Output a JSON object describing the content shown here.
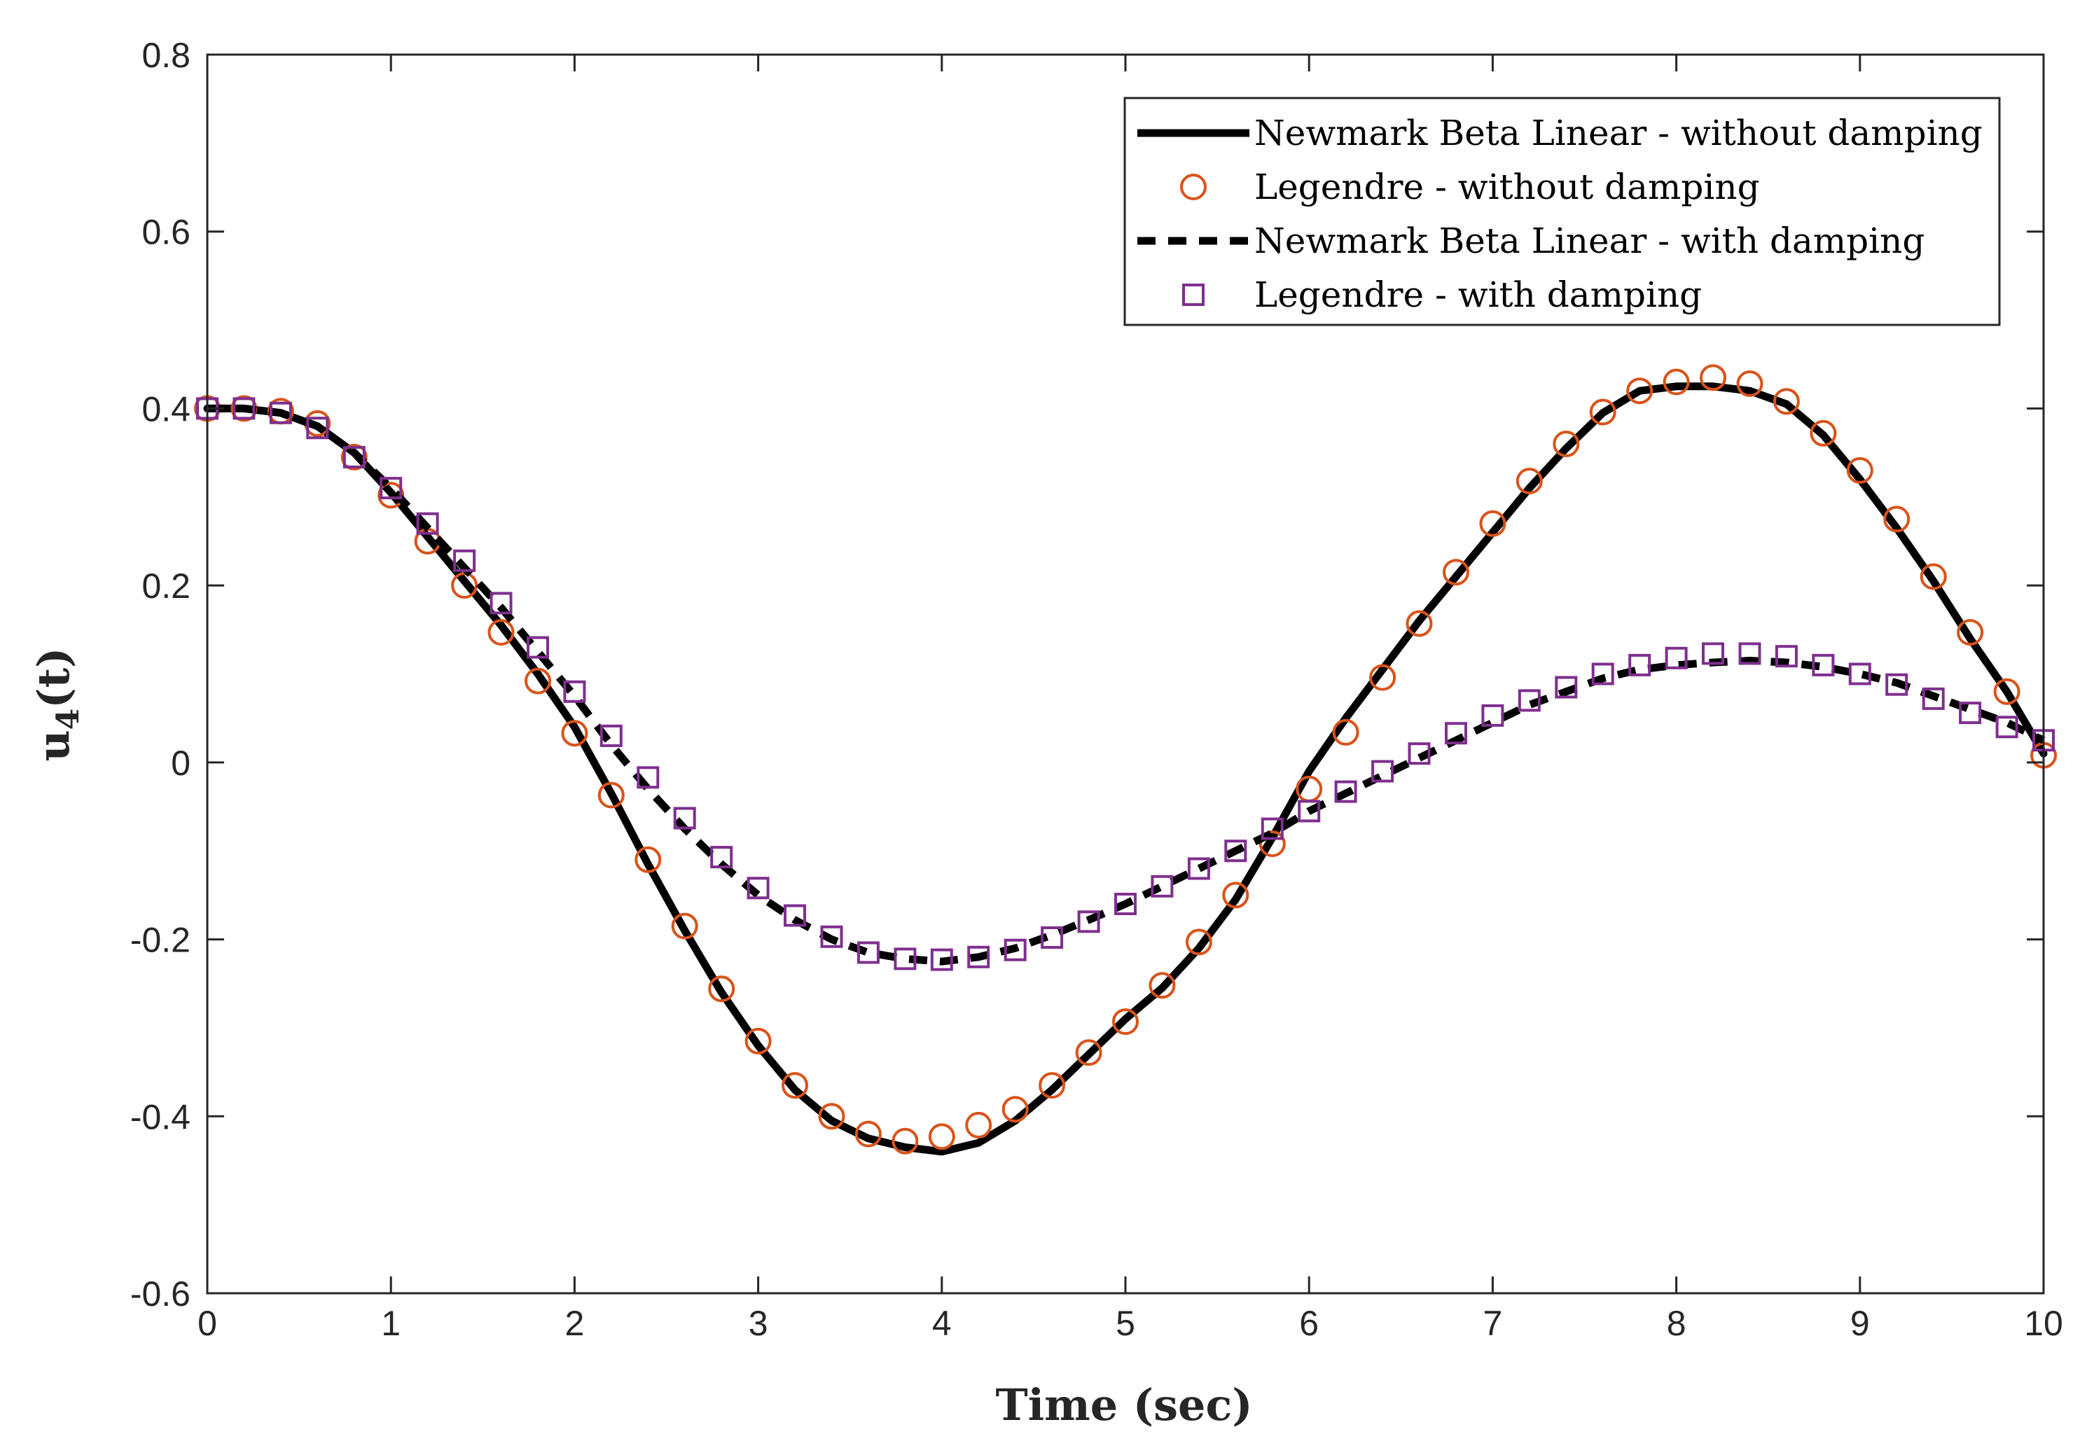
{
  "chart_data": {
    "type": "line",
    "title": "",
    "xlabel": "Time (sec)",
    "ylabel_main": "u",
    "ylabel_sub": "4",
    "ylabel_suffix": "(t)",
    "xlim": [
      0,
      10
    ],
    "ylim": [
      -0.6,
      0.8
    ],
    "xticks": [
      0,
      1,
      2,
      3,
      4,
      5,
      6,
      7,
      8,
      9,
      10
    ],
    "yticks": [
      -0.6,
      -0.4,
      -0.2,
      0,
      0.2,
      0.4,
      0.6,
      0.8
    ],
    "xtick_labels": [
      "0",
      "1",
      "2",
      "3",
      "4",
      "5",
      "6",
      "7",
      "8",
      "9",
      "10"
    ],
    "ytick_labels": [
      "-0.6",
      "-0.4",
      "-0.2",
      "0",
      "0.2",
      "0.4",
      "0.6",
      "0.8"
    ],
    "grid": false,
    "legend_position": "top-right",
    "series": [
      {
        "name": "Newmark Beta Linear - without damping",
        "style": "solid-line",
        "color": "#000000",
        "x": [
          0,
          0.2,
          0.4,
          0.6,
          0.8,
          1.0,
          1.2,
          1.4,
          1.6,
          1.8,
          2.0,
          2.2,
          2.4,
          2.6,
          2.8,
          3.0,
          3.2,
          3.4,
          3.6,
          3.8,
          4.0,
          4.2,
          4.4,
          4.6,
          4.8,
          5.0,
          5.2,
          5.4,
          5.6,
          5.8,
          6.0,
          6.2,
          6.4,
          6.6,
          6.8,
          7.0,
          7.2,
          7.4,
          7.6,
          7.8,
          8.0,
          8.2,
          8.4,
          8.6,
          8.8,
          9.0,
          9.2,
          9.4,
          9.6,
          9.8,
          10.0
        ],
        "y": [
          0.4,
          0.4,
          0.395,
          0.38,
          0.35,
          0.305,
          0.255,
          0.205,
          0.155,
          0.1,
          0.04,
          -0.035,
          -0.115,
          -0.19,
          -0.26,
          -0.32,
          -0.37,
          -0.405,
          -0.425,
          -0.435,
          -0.44,
          -0.43,
          -0.405,
          -0.37,
          -0.33,
          -0.29,
          -0.255,
          -0.21,
          -0.155,
          -0.085,
          -0.01,
          0.05,
          0.105,
          0.16,
          0.21,
          0.26,
          0.31,
          0.355,
          0.395,
          0.42,
          0.425,
          0.425,
          0.42,
          0.405,
          0.37,
          0.32,
          0.265,
          0.205,
          0.14,
          0.08,
          0.01
        ]
      },
      {
        "name": "Legendre - without damping",
        "style": "circle-markers",
        "color": "#D95319",
        "x": [
          0,
          0.2,
          0.4,
          0.6,
          0.8,
          1.0,
          1.2,
          1.4,
          1.6,
          1.8,
          2.0,
          2.2,
          2.4,
          2.6,
          2.8,
          3.0,
          3.2,
          3.4,
          3.6,
          3.8,
          4.0,
          4.2,
          4.4,
          4.6,
          4.8,
          5.0,
          5.2,
          5.4,
          5.6,
          5.8,
          6.0,
          6.2,
          6.4,
          6.6,
          6.8,
          7.0,
          7.2,
          7.4,
          7.6,
          7.8,
          8.0,
          8.2,
          8.4,
          8.6,
          8.8,
          9.0,
          9.2,
          9.4,
          9.6,
          9.8,
          10.0
        ],
        "y": [
          0.4,
          0.4,
          0.397,
          0.383,
          0.345,
          0.302,
          0.25,
          0.2,
          0.147,
          0.092,
          0.033,
          -0.037,
          -0.11,
          -0.185,
          -0.256,
          -0.315,
          -0.365,
          -0.4,
          -0.42,
          -0.428,
          -0.423,
          -0.41,
          -0.392,
          -0.365,
          -0.328,
          -0.293,
          -0.252,
          -0.203,
          -0.15,
          -0.092,
          -0.03,
          0.034,
          0.096,
          0.157,
          0.215,
          0.27,
          0.318,
          0.36,
          0.396,
          0.42,
          0.43,
          0.435,
          0.428,
          0.408,
          0.372,
          0.33,
          0.275,
          0.21,
          0.147,
          0.08,
          0.008
        ]
      },
      {
        "name": "Newmark Beta Linear - with damping",
        "style": "dashed-line",
        "color": "#000000",
        "x": [
          0,
          0.2,
          0.4,
          0.6,
          0.8,
          1.0,
          1.2,
          1.4,
          1.6,
          1.8,
          2.0,
          2.2,
          2.4,
          2.6,
          2.8,
          3.0,
          3.2,
          3.4,
          3.6,
          3.8,
          4.0,
          4.2,
          4.4,
          4.6,
          4.8,
          5.0,
          5.2,
          5.4,
          5.6,
          5.8,
          6.0,
          6.2,
          6.4,
          6.6,
          6.8,
          7.0,
          7.2,
          7.4,
          7.6,
          7.8,
          8.0,
          8.2,
          8.4,
          8.6,
          8.8,
          9.0,
          9.2,
          9.4,
          9.6,
          9.8,
          10.0
        ],
        "y": [
          0.4,
          0.4,
          0.395,
          0.38,
          0.35,
          0.31,
          0.265,
          0.22,
          0.175,
          0.125,
          0.075,
          0.02,
          -0.03,
          -0.075,
          -0.115,
          -0.15,
          -0.178,
          -0.2,
          -0.215,
          -0.222,
          -0.225,
          -0.22,
          -0.21,
          -0.195,
          -0.178,
          -0.16,
          -0.14,
          -0.12,
          -0.1,
          -0.08,
          -0.055,
          -0.035,
          -0.015,
          0.005,
          0.025,
          0.045,
          0.065,
          0.08,
          0.095,
          0.105,
          0.11,
          0.113,
          0.115,
          0.113,
          0.108,
          0.1,
          0.09,
          0.075,
          0.06,
          0.045,
          0.025
        ]
      },
      {
        "name": "Legendre - with damping",
        "style": "square-markers",
        "color": "#7E2F8E",
        "x": [
          0,
          0.2,
          0.4,
          0.6,
          0.8,
          1.0,
          1.2,
          1.4,
          1.6,
          1.8,
          2.0,
          2.2,
          2.4,
          2.6,
          2.8,
          3.0,
          3.2,
          3.4,
          3.6,
          3.8,
          4.0,
          4.2,
          4.4,
          4.6,
          4.8,
          5.0,
          5.2,
          5.4,
          5.6,
          5.8,
          6.0,
          6.2,
          6.4,
          6.6,
          6.8,
          7.0,
          7.2,
          7.4,
          7.6,
          7.8,
          8.0,
          8.2,
          8.4,
          8.6,
          8.8,
          9.0,
          9.2,
          9.4,
          9.6,
          9.8,
          10.0
        ],
        "y": [
          0.4,
          0.4,
          0.395,
          0.378,
          0.345,
          0.31,
          0.27,
          0.228,
          0.18,
          0.13,
          0.08,
          0.03,
          -0.017,
          -0.063,
          -0.107,
          -0.142,
          -0.173,
          -0.197,
          -0.215,
          -0.222,
          -0.223,
          -0.22,
          -0.212,
          -0.198,
          -0.18,
          -0.16,
          -0.14,
          -0.12,
          -0.1,
          -0.075,
          -0.055,
          -0.033,
          -0.01,
          0.01,
          0.033,
          0.053,
          0.07,
          0.085,
          0.1,
          0.11,
          0.118,
          0.123,
          0.123,
          0.12,
          0.11,
          0.1,
          0.088,
          0.072,
          0.056,
          0.04,
          0.025
        ]
      }
    ]
  }
}
